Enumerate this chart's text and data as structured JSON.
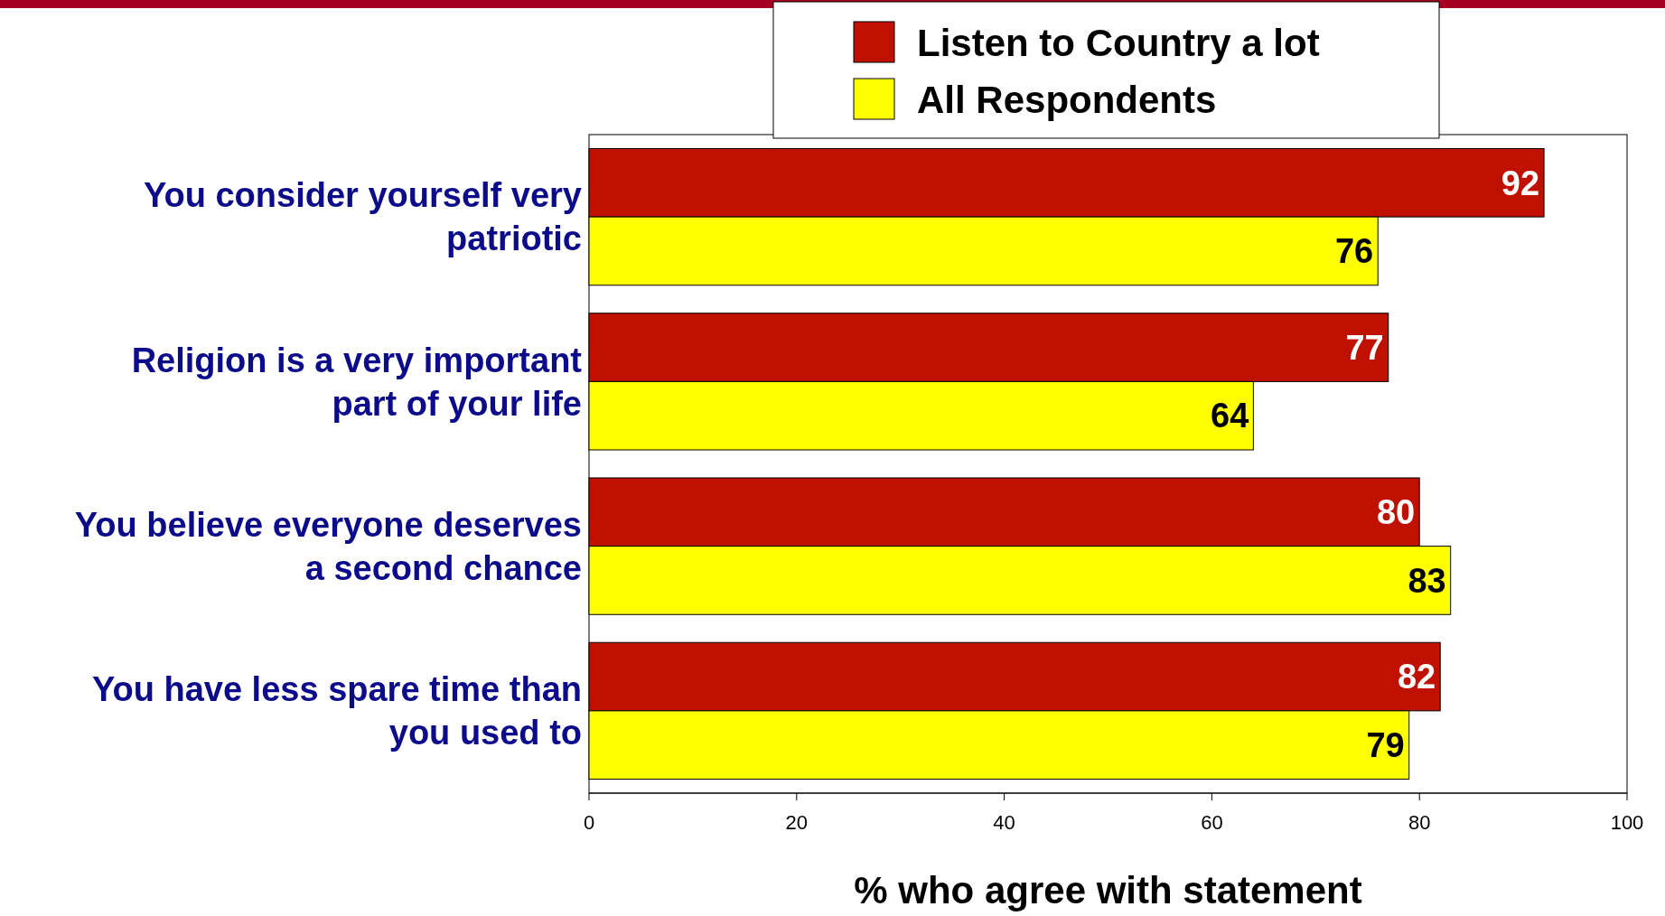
{
  "chart_data": {
    "type": "bar",
    "orientation": "horizontal",
    "xlabel": "% who agree with statement",
    "categories": [
      "You consider yourself very patriotic",
      "Religion is a very important part of your life",
      "You believe everyone deserves a second chance",
      "You have less spare time than you used to"
    ],
    "series": [
      {
        "name": "Listen to Country a lot",
        "color": "#bf1000",
        "values": [
          92,
          77,
          80,
          82
        ]
      },
      {
        "name": "All Respondents",
        "color": "#ffff00",
        "values": [
          76,
          64,
          83,
          79
        ]
      }
    ],
    "xlim": [
      0,
      100
    ],
    "xticks": [
      0,
      20,
      40,
      60,
      80,
      100
    ],
    "data_labels": true,
    "legend": "top",
    "grid": false
  }
}
